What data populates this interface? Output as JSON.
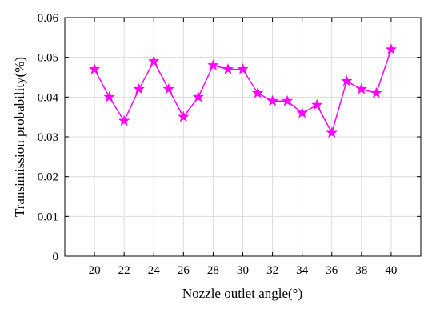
{
  "chart_data": {
    "type": "line",
    "title": "",
    "xlabel": "Nozzle outlet angle(°)",
    "ylabel": "Transimission probability(%)",
    "xlim": [
      18,
      42
    ],
    "ylim": [
      0,
      0.06
    ],
    "x_ticks": [
      20,
      22,
      24,
      26,
      28,
      30,
      32,
      34,
      36,
      38,
      40
    ],
    "x_tick_labels": [
      "20",
      "22",
      "24",
      "26",
      "28",
      "30",
      "32",
      "34",
      "36",
      "38",
      "40"
    ],
    "y_ticks": [
      0,
      0.01,
      0.02,
      0.03,
      0.04,
      0.05,
      0.06
    ],
    "y_tick_labels": [
      "0",
      "0.01",
      "0.02",
      "0.03",
      "0.04",
      "0.05",
      "0.06"
    ],
    "grid": true,
    "series": [
      {
        "color": "#ff00ff",
        "marker": "star",
        "x": [
          20,
          21,
          22,
          23,
          24,
          25,
          26,
          27,
          28,
          29,
          30,
          31,
          32,
          33,
          34,
          35,
          36,
          37,
          38,
          39,
          40
        ],
        "y": [
          0.047,
          0.04,
          0.034,
          0.042,
          0.049,
          0.042,
          0.035,
          0.04,
          0.048,
          0.047,
          0.047,
          0.041,
          0.039,
          0.039,
          0.036,
          0.038,
          0.031,
          0.044,
          0.042,
          0.041,
          0.052
        ]
      }
    ]
  }
}
